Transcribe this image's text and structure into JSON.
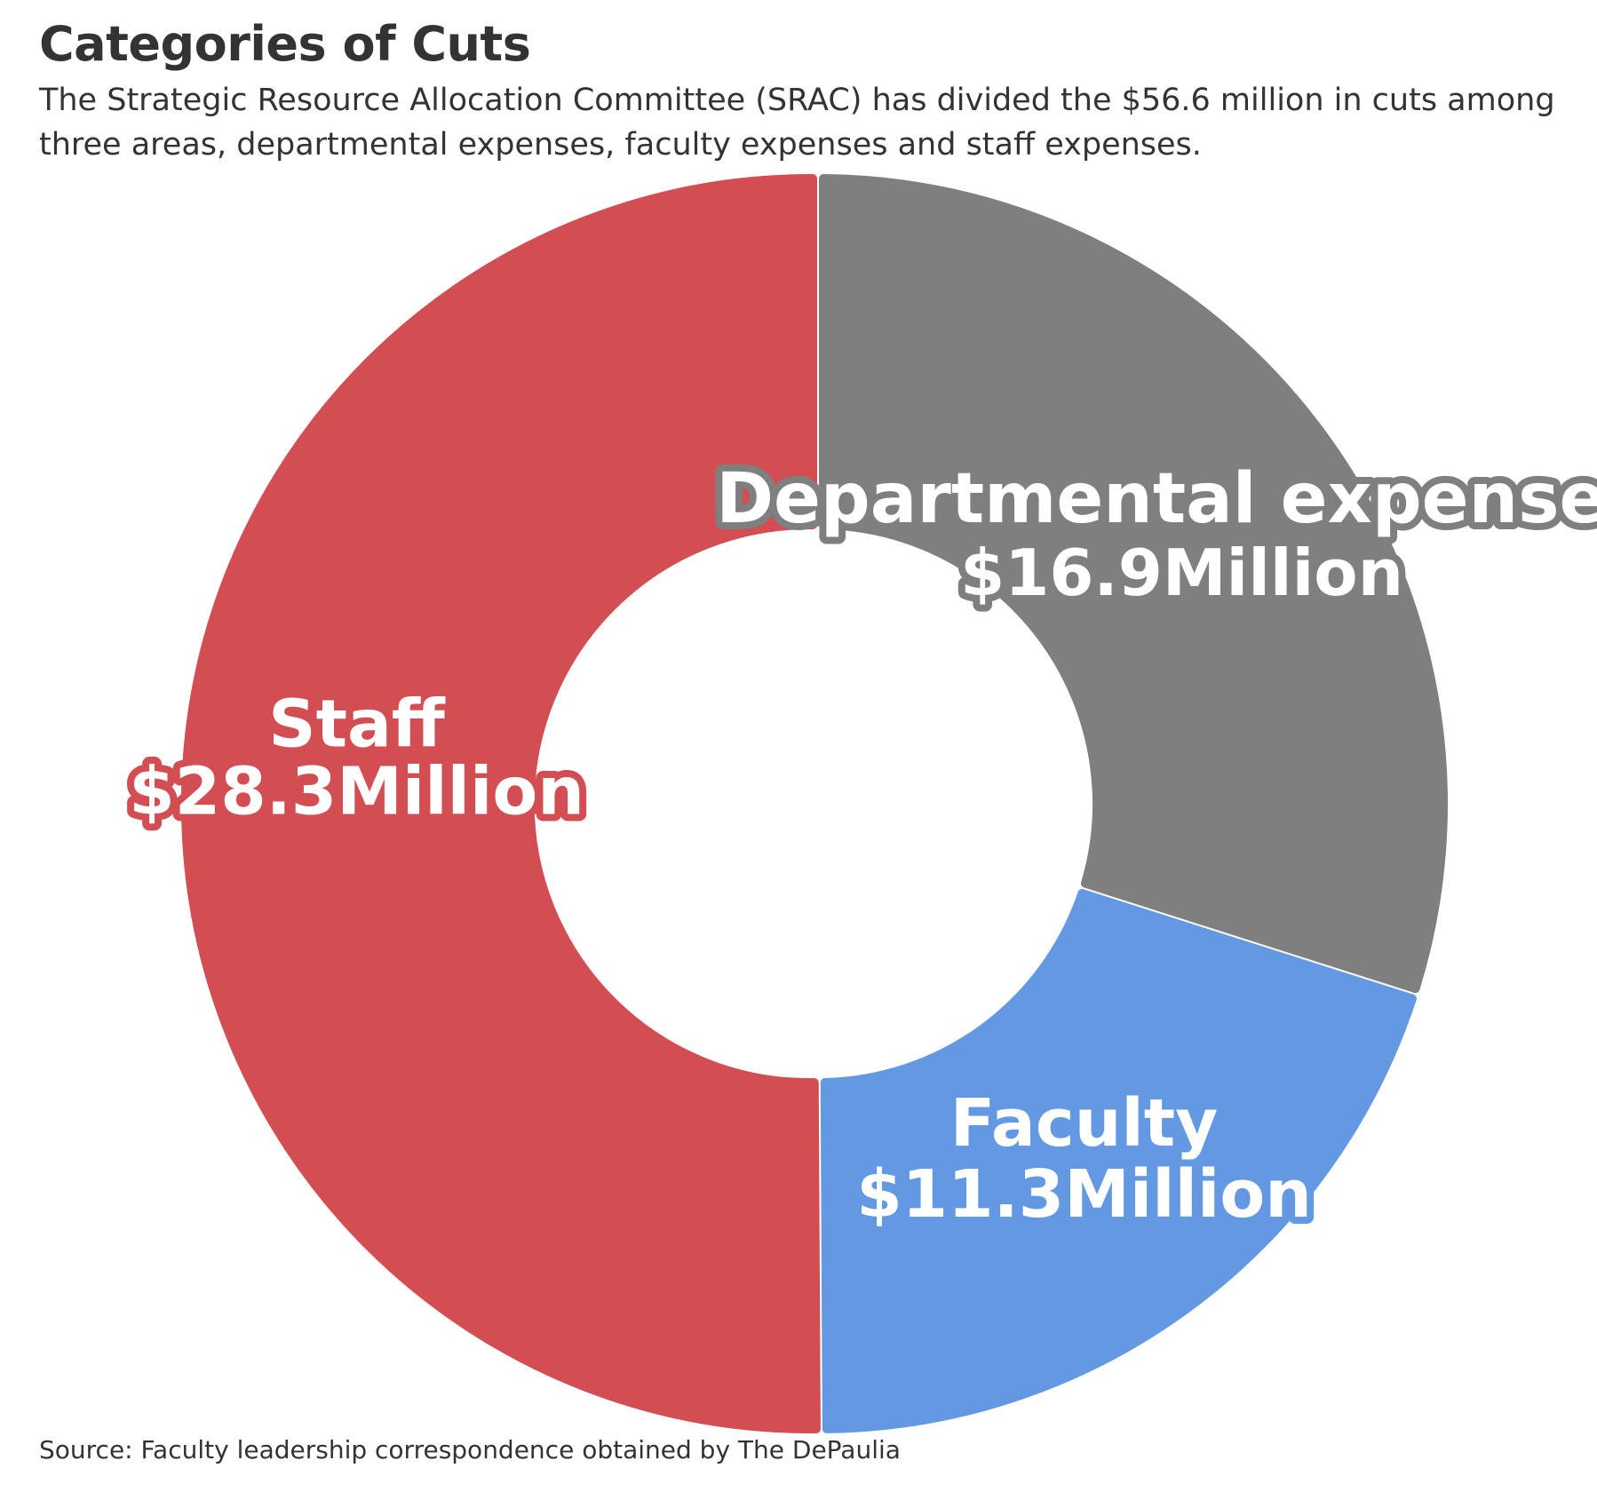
{
  "header": {
    "title": "Categories of Cuts",
    "subtitle": "The Strategic Resource Allocation Committee (SRAC) has divided the $56.6 million in cuts among three areas, departmental expenses, faculty expenses and staff expenses."
  },
  "footer": {
    "source": "Source: Faculty leadership correspondence obtained by The DePaulia"
  },
  "chart_data": {
    "type": "pie",
    "variant": "donut",
    "title": "Categories of Cuts",
    "unit": "Million",
    "slices": [
      {
        "name": "Departmental expenses",
        "value": 16.9,
        "value_label": "$16.9Million",
        "color": "#7f7f7f"
      },
      {
        "name": "Faculty",
        "value": 11.3,
        "value_label": "$11.3Million",
        "color": "#6299e2"
      },
      {
        "name": "Staff",
        "value": 28.3,
        "value_label": "$28.3Million",
        "color": "#d24e52"
      }
    ],
    "start_angle": "12 o'clock, clockwise",
    "legend": "none",
    "labels": "on slices"
  }
}
